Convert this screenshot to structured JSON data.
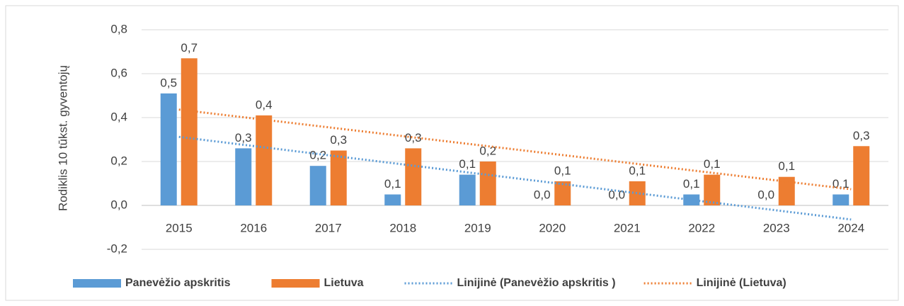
{
  "chart_data": {
    "type": "bar",
    "y_axis_label": "Rodiklis 10 tūkst. gyventojų",
    "categories": [
      "2015",
      "2016",
      "2017",
      "2018",
      "2019",
      "2020",
      "2021",
      "2022",
      "2023",
      "2024"
    ],
    "series": [
      {
        "name": "Panevėžio apskritis",
        "color": "#5b9bd5",
        "values": [
          0.51,
          0.26,
          0.18,
          0.05,
          0.14,
          0,
          0,
          0.05,
          0,
          0.05
        ],
        "value_labels": [
          "0,5",
          "0,3",
          "0,2",
          "0,1",
          "0,1",
          "0,0",
          "0,0",
          "0,1",
          "0,0",
          "0,1"
        ]
      },
      {
        "name": "Lietuva",
        "color": "#ed7d31",
        "values": [
          0.67,
          0.41,
          0.25,
          0.26,
          0.2,
          0.11,
          0.11,
          0.14,
          0.13,
          0.27
        ],
        "value_labels": [
          "0,7",
          "0,4",
          "0,3",
          "0,3",
          "0,2",
          "0,1",
          "0,1",
          "0,1",
          "0,1",
          "0,3"
        ]
      }
    ],
    "trendlines": [
      {
        "name": "Linijinė (Panevėžio apskritis )",
        "series": 0,
        "color": "#5b9bd5"
      },
      {
        "name": "Linijinė (Lietuva)",
        "series": 1,
        "color": "#ed7d31"
      }
    ],
    "ylim": [
      -0.2,
      0.8
    ],
    "yticks": [
      {
        "value": -0.2,
        "label": "-0,2"
      },
      {
        "value": 0,
        "label": "0,0"
      },
      {
        "value": 0.2,
        "label": "0,2"
      },
      {
        "value": 0.4,
        "label": "0,4"
      },
      {
        "value": 0.6,
        "label": "0,6"
      },
      {
        "value": 0.8,
        "label": "0,8"
      }
    ],
    "grid": true,
    "legend": "bottom"
  }
}
